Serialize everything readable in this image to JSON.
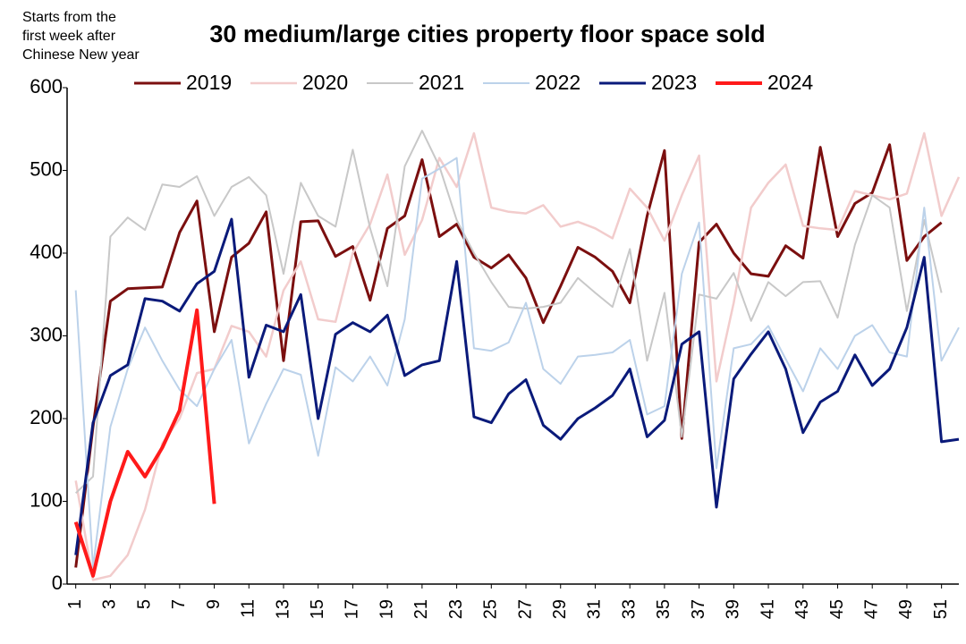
{
  "chart_data": {
    "type": "line",
    "title": "30 medium/large cities property floor space sold",
    "note": [
      "Starts from the",
      "first week after",
      "Chinese New year"
    ],
    "x": [
      1,
      2,
      3,
      4,
      5,
      6,
      7,
      8,
      9,
      10,
      11,
      12,
      13,
      14,
      15,
      16,
      17,
      18,
      19,
      20,
      21,
      22,
      23,
      24,
      25,
      26,
      27,
      28,
      29,
      30,
      31,
      32,
      33,
      34,
      35,
      36,
      37,
      38,
      39,
      40,
      41,
      42,
      43,
      44,
      45,
      46,
      47,
      48,
      49,
      50,
      51,
      52
    ],
    "xlim": [
      0.5,
      52
    ],
    "xticks": [
      1,
      3,
      5,
      7,
      9,
      11,
      13,
      15,
      17,
      19,
      21,
      23,
      25,
      27,
      29,
      31,
      33,
      35,
      37,
      39,
      41,
      43,
      45,
      47,
      49,
      51
    ],
    "ylim": [
      0,
      600
    ],
    "yticks": [
      0,
      100,
      200,
      300,
      400,
      500,
      600
    ],
    "grid": false,
    "series": [
      {
        "name": "2019",
        "color": "#7b0f0f",
        "width": 3,
        "values": [
          20,
          190,
          342,
          357,
          358,
          359,
          425,
          463,
          305,
          395,
          412,
          450,
          270,
          438,
          439,
          396,
          408,
          343,
          430,
          445,
          513,
          420,
          435,
          395,
          382,
          398,
          370,
          316,
          360,
          407,
          395,
          378,
          340,
          445,
          524,
          176,
          413,
          435,
          400,
          375,
          372,
          409,
          394,
          528,
          420,
          460,
          473,
          531,
          391,
          420,
          437,
          null
        ]
      },
      {
        "name": "2020",
        "color": "#f2cccc",
        "width": 2.5,
        "values": [
          125,
          5,
          10,
          35,
          90,
          170,
          200,
          255,
          260,
          312,
          305,
          275,
          355,
          390,
          320,
          317,
          400,
          435,
          495,
          398,
          440,
          515,
          480,
          545,
          455,
          450,
          448,
          458,
          432,
          438,
          430,
          418,
          478,
          455,
          415,
          470,
          518,
          245,
          340,
          455,
          485,
          507,
          433,
          430,
          428,
          475,
          470,
          465,
          472,
          545,
          445,
          492
        ]
      },
      {
        "name": "2021",
        "color": "#c8c8c8",
        "width": 2,
        "values": [
          110,
          130,
          420,
          443,
          428,
          483,
          480,
          493,
          445,
          480,
          492,
          470,
          375,
          485,
          445,
          432,
          525,
          430,
          360,
          505,
          548,
          505,
          440,
          400,
          365,
          335,
          333,
          335,
          340,
          370,
          352,
          335,
          405,
          270,
          352,
          178,
          350,
          345,
          376,
          318,
          365,
          348,
          365,
          366,
          322,
          410,
          470,
          455,
          330,
          440,
          352,
          null
        ]
      },
      {
        "name": "2022",
        "color": "#bcd2ea",
        "width": 2,
        "values": [
          355,
          20,
          190,
          260,
          310,
          270,
          235,
          215,
          260,
          295,
          170,
          218,
          260,
          253,
          155,
          262,
          245,
          275,
          240,
          320,
          490,
          502,
          515,
          285,
          282,
          292,
          340,
          260,
          242,
          275,
          277,
          280,
          295,
          205,
          215,
          375,
          437,
          140,
          285,
          290,
          312,
          272,
          233,
          285,
          260,
          300,
          313,
          280,
          275,
          455,
          270,
          310
        ]
      },
      {
        "name": "2023",
        "color": "#0a1a7a",
        "width": 3,
        "values": [
          35,
          195,
          252,
          265,
          345,
          342,
          330,
          363,
          378,
          441,
          250,
          313,
          305,
          350,
          200,
          302,
          316,
          305,
          325,
          252,
          265,
          270,
          390,
          202,
          195,
          230,
          247,
          192,
          175,
          200,
          213,
          228,
          260,
          178,
          198,
          290,
          305,
          93,
          248,
          278,
          305,
          260,
          183,
          220,
          233,
          277,
          240,
          260,
          310,
          395,
          172,
          175
        ]
      },
      {
        "name": "2024",
        "color": "#ff1a1a",
        "width": 4,
        "values": [
          75,
          10,
          100,
          160,
          130,
          165,
          210,
          331,
          97,
          null,
          null,
          null,
          null,
          null,
          null,
          null,
          null,
          null,
          null,
          null,
          null,
          null,
          null,
          null,
          null,
          null,
          null,
          null,
          null,
          null,
          null,
          null,
          null,
          null,
          null,
          null,
          null,
          null,
          null,
          null,
          null,
          null,
          null,
          null,
          null,
          null,
          null,
          null,
          null,
          null,
          null,
          null
        ]
      }
    ]
  }
}
